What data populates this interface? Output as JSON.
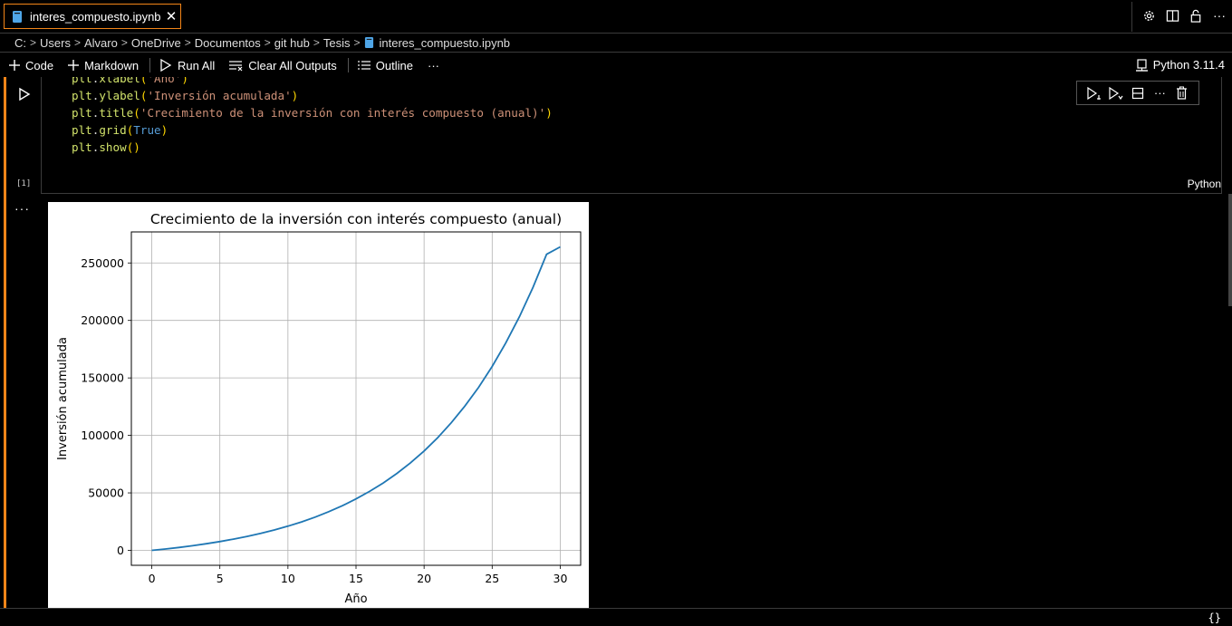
{
  "tab": {
    "title": "interes_compuesto.ipynb"
  },
  "breadcrumb": [
    "C:",
    "Users",
    "Alvaro",
    "OneDrive",
    "Documentos",
    "git hub",
    "Tesis",
    "interes_compuesto.ipynb"
  ],
  "toolbar": {
    "code_label": "Code",
    "markdown_label": "Markdown",
    "run_all_label": "Run All",
    "clear_outputs_label": "Clear All Outputs",
    "outline_label": "Outline",
    "more_label": "···",
    "kernel_label": "Python 3.11.4"
  },
  "cell": {
    "execution_count": "[1]",
    "language": "Python",
    "output_more": "···",
    "code_lines": [
      [
        [
          "fn",
          "plt"
        ],
        [
          "pl",
          "."
        ],
        [
          "fn",
          "xlabel"
        ],
        [
          "pn",
          "("
        ],
        [
          "st",
          "'Año'"
        ],
        [
          "pn",
          ")"
        ]
      ],
      [
        [
          "fn",
          "plt"
        ],
        [
          "pl",
          "."
        ],
        [
          "fn",
          "ylabel"
        ],
        [
          "pn",
          "("
        ],
        [
          "st",
          "'Inversión acumulada'"
        ],
        [
          "pn",
          ")"
        ]
      ],
      [
        [
          "fn",
          "plt"
        ],
        [
          "pl",
          "."
        ],
        [
          "fn",
          "title"
        ],
        [
          "pn",
          "("
        ],
        [
          "st",
          "'Crecimiento de la inversión con interés compuesto (anual)'"
        ],
        [
          "pn",
          ")"
        ]
      ],
      [
        [
          "fn",
          "plt"
        ],
        [
          "pl",
          "."
        ],
        [
          "fn",
          "grid"
        ],
        [
          "pn",
          "("
        ],
        [
          "kw",
          "True"
        ],
        [
          "pn",
          ")"
        ]
      ],
      [
        [
          "fn",
          "plt"
        ],
        [
          "pl",
          "."
        ],
        [
          "fn",
          "show"
        ],
        [
          "pn",
          "()"
        ]
      ]
    ]
  },
  "status": {
    "braces": "{}"
  },
  "chart_data": {
    "type": "line",
    "title": "Crecimiento de la inversión con interés compuesto (anual)",
    "xlabel": "Año",
    "ylabel": "Inversión acumulada",
    "x": [
      0,
      1,
      2,
      3,
      4,
      5,
      6,
      7,
      8,
      9,
      10,
      11,
      12,
      13,
      14,
      15,
      16,
      17,
      18,
      19,
      20,
      21,
      22,
      23,
      24,
      25,
      26,
      27,
      28,
      29,
      30
    ],
    "series": [
      {
        "color": "#1f77b4",
        "values": [
          0,
          1200,
          2544,
          4049,
          5735,
          7623,
          9738,
          12106,
          14759,
          17730,
          21058,
          24785,
          28959,
          33634,
          38870,
          44735,
          51303,
          58660,
          66899,
          76127,
          86462,
          98038,
          111003,
          125523,
          141786,
          160000,
          180400,
          203249,
          228838,
          257499,
          264000
        ]
      }
    ],
    "xlim": [
      -1.5,
      31.5
    ],
    "ylim": [
      -13000,
      277000
    ],
    "xticks": [
      0,
      5,
      10,
      15,
      20,
      25,
      30
    ],
    "yticks": [
      0,
      50000,
      100000,
      150000,
      200000,
      250000
    ],
    "grid": true
  }
}
